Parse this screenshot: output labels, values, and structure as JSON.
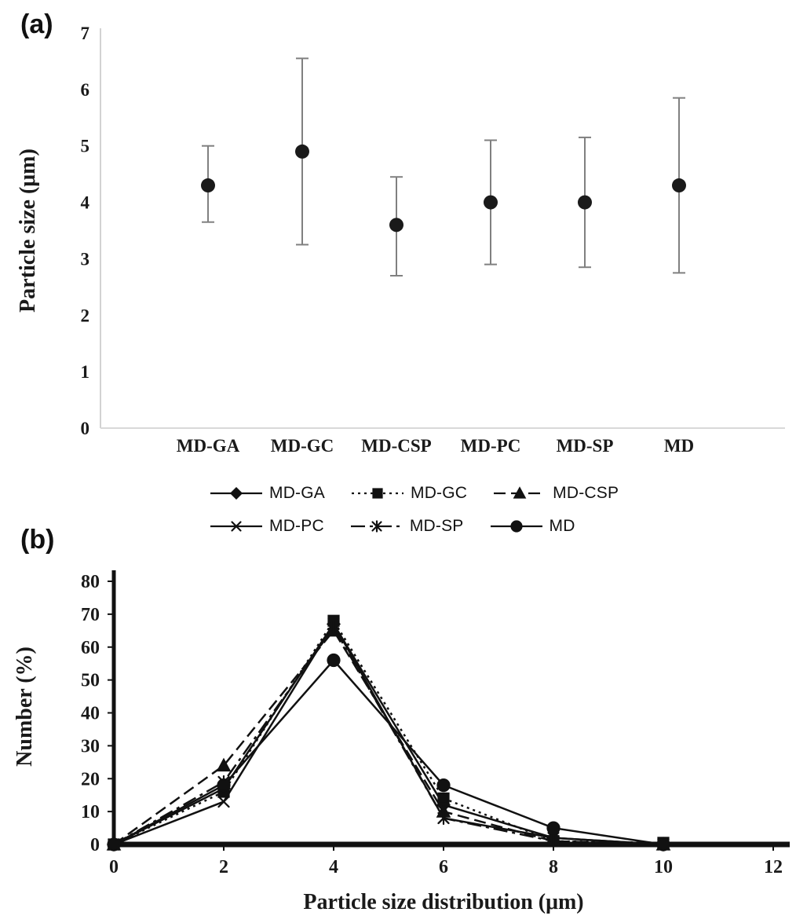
{
  "panel_a": {
    "label": "(a)"
  },
  "panel_b": {
    "label": "(b)"
  },
  "colors": {
    "point": "#1a1a1a",
    "error_bar": "#808080",
    "axis_light": "#c6c6c6",
    "baseline_light": "#d9d9d9",
    "axis_dark": "#111111"
  },
  "chart_data": [
    {
      "type": "scatter",
      "title": "",
      "xlabel": "",
      "ylabel": "Particle size (μm)",
      "ylim": [
        0,
        7
      ],
      "yticks": [
        0,
        1,
        2,
        3,
        4,
        5,
        6,
        7
      ],
      "categories": [
        "MD-GA",
        "MD-GC",
        "MD-CSP",
        "MD-PC",
        "MD-SP",
        "MD"
      ],
      "means": [
        4.3,
        4.9,
        3.6,
        4.0,
        4.0,
        4.3
      ],
      "error_low": [
        3.65,
        3.25,
        2.7,
        2.9,
        2.85,
        2.75
      ],
      "error_high": [
        5.0,
        6.55,
        4.45,
        5.1,
        5.15,
        5.85
      ],
      "grid": false,
      "legend_position": "none"
    },
    {
      "type": "line",
      "title": "",
      "xlabel": "Particle size distribution (μm)",
      "ylabel": "Number (%)",
      "xlim": [
        0,
        12
      ],
      "ylim": [
        0,
        80
      ],
      "xticks": [
        0,
        2,
        4,
        6,
        8,
        10,
        12
      ],
      "yticks": [
        0,
        10,
        20,
        30,
        40,
        50,
        60,
        70,
        80
      ],
      "x": [
        0,
        2,
        4,
        6,
        8,
        10
      ],
      "series": [
        {
          "name": "MD-GA",
          "marker": "diamond",
          "dash": "solid",
          "values": [
            0,
            17,
            67,
            12,
            2,
            0
          ]
        },
        {
          "name": "MD-GC",
          "marker": "square",
          "dash": "dotted",
          "values": [
            0,
            16,
            68,
            14,
            1,
            0.5
          ]
        },
        {
          "name": "MD-CSP",
          "marker": "triangle",
          "dash": "dashed",
          "values": [
            0,
            24,
            65,
            10,
            1,
            0
          ]
        },
        {
          "name": "MD-PC",
          "marker": "x",
          "dash": "solid",
          "values": [
            0,
            13,
            67,
            8,
            2,
            0
          ]
        },
        {
          "name": "MD-SP",
          "marker": "star",
          "dash": "dashdot",
          "values": [
            0,
            19,
            66,
            8,
            1,
            0
          ]
        },
        {
          "name": "MD",
          "marker": "circle",
          "dash": "solid",
          "values": [
            0,
            18,
            56,
            18,
            5,
            0
          ]
        }
      ],
      "grid": false,
      "legend_position": "top",
      "legend_rows": [
        [
          0,
          1,
          2
        ],
        [
          3,
          4,
          5
        ]
      ]
    }
  ]
}
